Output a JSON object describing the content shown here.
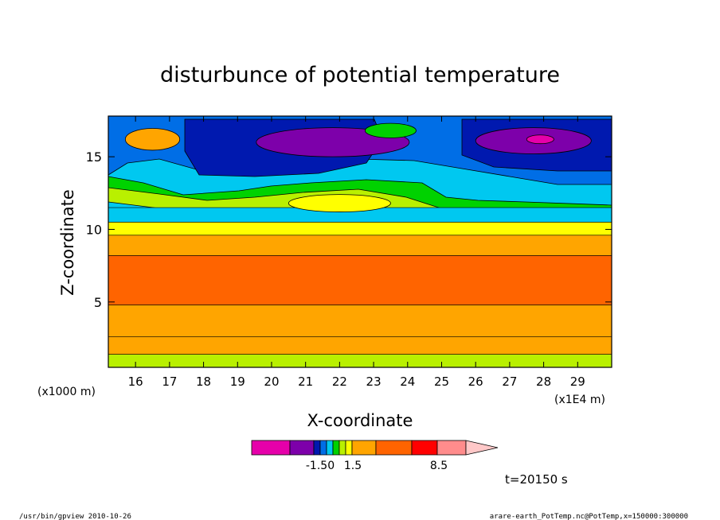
{
  "chart_data": {
    "type": "heatmap",
    "title": "disturbunce of potential temperature",
    "xlabel": "X-coordinate",
    "ylabel": "Z-coordinate",
    "x_unit_label": "(x1E4 m)",
    "y_unit_label": "(x1000 m)",
    "xlim": [
      15.2,
      30.0
    ],
    "ylim": [
      0.5,
      17.8
    ],
    "x_ticks": [
      "16",
      "17",
      "18",
      "19",
      "20",
      "21",
      "22",
      "23",
      "24",
      "25",
      "26",
      "27",
      "28",
      "29"
    ],
    "y_ticks": [
      "5",
      "10",
      "15"
    ],
    "colorbar": {
      "colors": [
        "#e600aa",
        "#7d00aa",
        "#0019af",
        "#006ee6",
        "#00c8f0",
        "#00d200",
        "#b9f000",
        "#ffff00",
        "#ffa500",
        "#ff6400",
        "#ff0000",
        "#ff8c8c",
        "#ffc8c8"
      ],
      "labels": [
        "-1.50",
        "1.5",
        "8.5"
      ]
    },
    "layers": [
      {
        "z": [
          0.5,
          1.4
        ],
        "color": "#b9f000"
      },
      {
        "z": [
          1.4,
          2.6
        ],
        "color": "#ffa500"
      },
      {
        "z": [
          2.6,
          4.8
        ],
        "color": "#ffa500"
      },
      {
        "z": [
          4.8,
          8.2
        ],
        "color": "#ff6400"
      },
      {
        "z": [
          8.2,
          9.6
        ],
        "color": "#ffa500"
      },
      {
        "z": [
          9.6,
          10.5
        ],
        "color": "#ffff00"
      },
      {
        "z": [
          10.5,
          11.5
        ],
        "color": "#00c8f0"
      }
    ],
    "blobs": [
      {
        "center": [
          16.5,
          16.2
        ],
        "size": [
          1.6,
          1.5
        ],
        "color": "#ffa500"
      },
      {
        "center": [
          21.8,
          16.0
        ],
        "size": [
          4.5,
          2.0
        ],
        "color": "#7d00aa"
      },
      {
        "center": [
          27.7,
          16.1
        ],
        "size": [
          3.4,
          1.8
        ],
        "color": "#7d00aa"
      },
      {
        "center": [
          27.9,
          16.2
        ],
        "size": [
          0.8,
          0.6
        ],
        "color": "#e600aa"
      },
      {
        "center": [
          22.0,
          11.8
        ],
        "size": [
          3.0,
          1.2
        ],
        "color": "#ffff00"
      },
      {
        "center": [
          23.5,
          16.8
        ],
        "size": [
          1.5,
          1.0
        ],
        "color": "#00d200"
      }
    ]
  },
  "annotations": {
    "time_label": "t=20150 s",
    "footer_left": "/usr/bin/gpview   2010-10-26",
    "footer_right": "arare-earth_PotTemp.nc@PotTemp,x=150000:300000"
  }
}
